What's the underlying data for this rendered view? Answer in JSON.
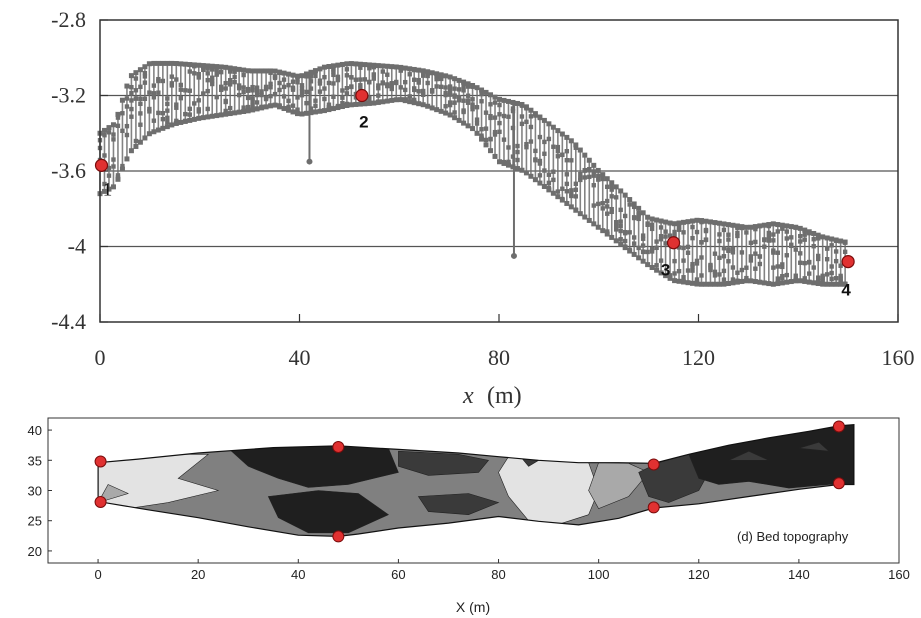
{
  "chart_data": [
    {
      "type": "scatter",
      "title": "",
      "xlabel": "x",
      "xlabel_unit": "(m)",
      "ylabel": "",
      "xlim": [
        0,
        160
      ],
      "ylim": [
        -4.4,
        -2.8
      ],
      "xticks": [
        "0",
        "40",
        "80",
        "120",
        "160"
      ],
      "yticks": [
        "-2.8",
        "-3.2",
        "-3.6",
        "-4",
        "-4.4"
      ],
      "grid": "horizontal at -3.2, -3.6, -4",
      "marker_color": "#6e6e6e",
      "band": [
        {
          "x": 0,
          "y1": -3.4,
          "y2": -3.72
        },
        {
          "x": 3,
          "y1": -3.35,
          "y2": -3.68
        },
        {
          "x": 6,
          "y1": -3.1,
          "y2": -3.5
        },
        {
          "x": 10,
          "y1": -3.03,
          "y2": -3.4
        },
        {
          "x": 15,
          "y1": -3.03,
          "y2": -3.35
        },
        {
          "x": 20,
          "y1": -3.04,
          "y2": -3.32
        },
        {
          "x": 25,
          "y1": -3.05,
          "y2": -3.3
        },
        {
          "x": 30,
          "y1": -3.07,
          "y2": -3.28
        },
        {
          "x": 35,
          "y1": -3.07,
          "y2": -3.25
        },
        {
          "x": 40,
          "y1": -3.1,
          "y2": -3.3
        },
        {
          "x": 45,
          "y1": -3.05,
          "y2": -3.28
        },
        {
          "x": 50,
          "y1": -3.03,
          "y2": -3.25
        },
        {
          "x": 55,
          "y1": -3.04,
          "y2": -3.24
        },
        {
          "x": 60,
          "y1": -3.05,
          "y2": -3.22
        },
        {
          "x": 65,
          "y1": -3.07,
          "y2": -3.25
        },
        {
          "x": 70,
          "y1": -3.1,
          "y2": -3.3
        },
        {
          "x": 75,
          "y1": -3.15,
          "y2": -3.38
        },
        {
          "x": 80,
          "y1": -3.22,
          "y2": -3.55
        },
        {
          "x": 85,
          "y1": -3.25,
          "y2": -3.6
        },
        {
          "x": 90,
          "y1": -3.35,
          "y2": -3.7
        },
        {
          "x": 95,
          "y1": -3.45,
          "y2": -3.8
        },
        {
          "x": 100,
          "y1": -3.6,
          "y2": -3.9
        },
        {
          "x": 105,
          "y1": -3.72,
          "y2": -4.0
        },
        {
          "x": 110,
          "y1": -3.85,
          "y2": -4.1
        },
        {
          "x": 115,
          "y1": -3.88,
          "y2": -4.18
        },
        {
          "x": 120,
          "y1": -3.86,
          "y2": -4.2
        },
        {
          "x": 125,
          "y1": -3.88,
          "y2": -4.2
        },
        {
          "x": 130,
          "y1": -3.9,
          "y2": -4.18
        },
        {
          "x": 135,
          "y1": -3.88,
          "y2": -4.2
        },
        {
          "x": 140,
          "y1": -3.9,
          "y2": -4.18
        },
        {
          "x": 145,
          "y1": -3.95,
          "y2": -4.2
        },
        {
          "x": 150,
          "y1": -3.98,
          "y2": -4.2
        }
      ],
      "spikes": [
        {
          "x": 42,
          "y": -3.55
        },
        {
          "x": 83,
          "y": -4.05
        }
      ],
      "points": [
        {
          "label": "1",
          "x": 0.3,
          "y": -3.57
        },
        {
          "label": "2",
          "x": 52.5,
          "y": -3.2
        },
        {
          "label": "3",
          "x": 115,
          "y": -3.98
        },
        {
          "label": "4",
          "x": 150,
          "y": -4.08
        }
      ],
      "point_color": "#e03131"
    },
    {
      "type": "contour",
      "title": "(d) Bed topography",
      "xlabel": "X (m)",
      "xlim": [
        -10,
        160
      ],
      "ylim": [
        18,
        42
      ],
      "xticks": [
        "0",
        "20",
        "40",
        "60",
        "80",
        "100",
        "120",
        "140",
        "160"
      ],
      "yticks": [
        "20",
        "25",
        "30",
        "35",
        "40"
      ],
      "fill_colors": [
        "#1f1f1f",
        "#3a3a3a",
        "#808080",
        "#a9a9a9",
        "#e3e3e3"
      ],
      "points": [
        {
          "x": 0.5,
          "y": 34.8
        },
        {
          "x": 0.5,
          "y": 28.1
        },
        {
          "x": 48,
          "y": 37.2
        },
        {
          "x": 48,
          "y": 22.4
        },
        {
          "x": 111,
          "y": 34.3
        },
        {
          "x": 111,
          "y": 27.2
        },
        {
          "x": 148,
          "y": 40.6
        },
        {
          "x": 148,
          "y": 31.2
        }
      ],
      "point_color": "#e03131"
    }
  ]
}
